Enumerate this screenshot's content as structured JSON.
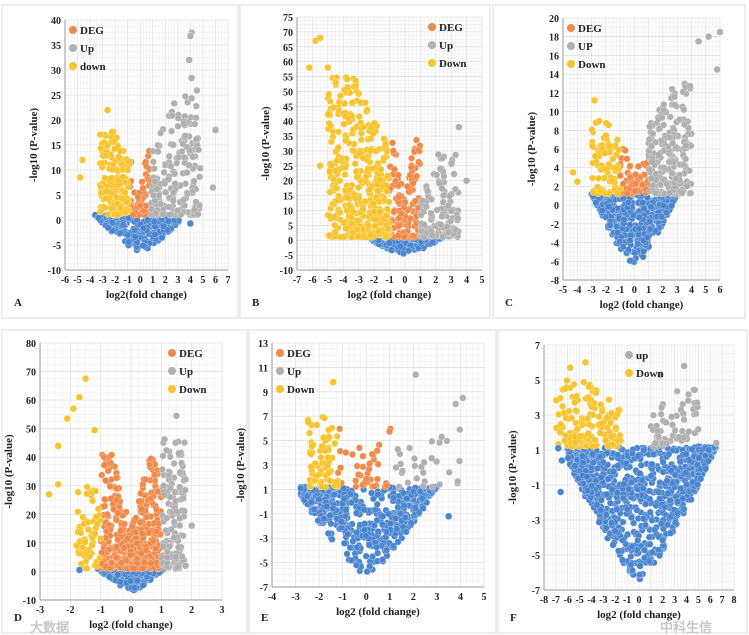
{
  "chart_data": [
    {
      "type": "scatter",
      "panel_label": "A",
      "xlabel": "log2(fold change)",
      "ylabel": "-log10 (P-value)",
      "xlim": [
        -6,
        7
      ],
      "ylim": [
        -10,
        40
      ],
      "xticks": [
        -6,
        -5,
        -4,
        -3,
        -2,
        -1,
        0,
        1,
        2,
        3,
        4,
        5,
        6,
        7
      ],
      "yticks": [
        -10,
        -5,
        0,
        5,
        10,
        15,
        20,
        25,
        30,
        35,
        40
      ],
      "legend": [
        {
          "label": "DEG",
          "color": "#f08a4b"
        },
        {
          "label": "Up",
          "color": "#b0b0b0"
        },
        {
          "label": "down",
          "color": "#f7c42c"
        }
      ],
      "legend_position": "top-left",
      "groups": [
        {
          "name": "not significant",
          "color": "#4a86cf",
          "n": 260,
          "x": [
            -3.6,
            3.1
          ],
          "y": [
            -6.5,
            1
          ],
          "shape": "bowl"
        },
        {
          "name": "DEG",
          "color": "#f08a4b",
          "n": 60,
          "x": [
            -0.9,
            0.9
          ],
          "y": [
            1,
            15
          ],
          "shape": "v"
        },
        {
          "name": "Up",
          "color": "#b0b0b0",
          "n": 180,
          "x": [
            0.9,
            4.8
          ],
          "y": [
            1,
            26
          ],
          "shape": "v"
        },
        {
          "name": "down",
          "color": "#f7c42c",
          "n": 160,
          "x": [
            -3.2,
            -0.9
          ],
          "y": [
            1,
            18
          ],
          "shape": "v"
        }
      ],
      "outliers": [
        [
          4.1,
          37.5
        ],
        [
          4,
          36.8
        ],
        [
          3.9,
          32
        ],
        [
          4.1,
          28.4
        ],
        [
          6,
          18
        ],
        [
          5.8,
          6.5
        ],
        [
          -2.6,
          22
        ],
        [
          -4.6,
          12
        ],
        [
          -4.8,
          8.5
        ],
        [
          4,
          -0.7
        ]
      ]
    },
    {
      "type": "scatter",
      "panel_label": "B",
      "xlabel": "log2 (fold change)",
      "ylabel": "-log10 (P-value)",
      "xlim": [
        -7,
        5
      ],
      "ylim": [
        -10,
        75
      ],
      "xticks": [
        -7,
        -6,
        -5,
        -4,
        -3,
        -2,
        -1,
        0,
        1,
        2,
        3,
        4,
        5
      ],
      "yticks": [
        -10,
        -5,
        0,
        5,
        10,
        15,
        20,
        25,
        30,
        35,
        40,
        45,
        50,
        55,
        60,
        65,
        70,
        75
      ],
      "legend": [
        {
          "label": "DEG",
          "color": "#f08a4b"
        },
        {
          "label": "Up",
          "color": "#b0b0b0"
        },
        {
          "label": "Down",
          "color": "#f7c42c"
        }
      ],
      "legend_position": "top-right",
      "groups": [
        {
          "name": "not significant",
          "color": "#4a86cf",
          "n": 200,
          "x": [
            -2.2,
            2.5
          ],
          "y": [
            -5,
            1
          ],
          "shape": "bowl"
        },
        {
          "name": "DEG",
          "color": "#f08a4b",
          "n": 120,
          "x": [
            -1,
            1
          ],
          "y": [
            1,
            36
          ],
          "shape": "v"
        },
        {
          "name": "Up",
          "color": "#b0b0b0",
          "n": 120,
          "x": [
            1,
            3.5
          ],
          "y": [
            1,
            30
          ],
          "shape": "v"
        },
        {
          "name": "Down",
          "color": "#f7c42c",
          "n": 400,
          "x": [
            -5,
            -1
          ],
          "y": [
            1,
            55
          ],
          "shape": "v"
        }
      ],
      "outliers": [
        [
          -5.5,
          68
        ],
        [
          -5.8,
          67
        ],
        [
          -6.2,
          58
        ],
        [
          -5,
          58
        ],
        [
          -4.5,
          53
        ],
        [
          -5.5,
          25
        ],
        [
          3.5,
          38
        ],
        [
          4,
          20
        ]
      ]
    },
    {
      "type": "scatter",
      "panel_label": "C",
      "xlabel": "log2 (fold change)",
      "ylabel": "-log10 (P-value)",
      "xlim": [
        -5,
        6
      ],
      "ylim": [
        -8,
        20
      ],
      "xticks": [
        -5,
        -4,
        -3,
        -2,
        -1,
        0,
        1,
        2,
        3,
        4,
        5,
        6
      ],
      "yticks": [
        -8,
        -6,
        -4,
        -2,
        0,
        2,
        4,
        6,
        8,
        10,
        12,
        14,
        16,
        18,
        20
      ],
      "legend": [
        {
          "label": "DEG",
          "color": "#f08a4b"
        },
        {
          "label": "UP",
          "color": "#b0b0b0"
        },
        {
          "label": "Down",
          "color": "#f7c42c"
        }
      ],
      "legend_position": "top-left",
      "groups": [
        {
          "name": "not significant",
          "color": "#4a86cf",
          "n": 420,
          "x": [
            -3,
            3
          ],
          "y": [
            -6.5,
            1.2
          ],
          "shape": "bowl"
        },
        {
          "name": "DEG",
          "color": "#f08a4b",
          "n": 60,
          "x": [
            -1,
            1
          ],
          "y": [
            1.2,
            6
          ],
          "shape": "v"
        },
        {
          "name": "UP",
          "color": "#b0b0b0",
          "n": 200,
          "x": [
            1,
            4
          ],
          "y": [
            1.2,
            13
          ],
          "shape": "v"
        },
        {
          "name": "Down",
          "color": "#f7c42c",
          "n": 80,
          "x": [
            -3,
            -1
          ],
          "y": [
            1.2,
            9
          ],
          "shape": "v"
        }
      ],
      "outliers": [
        [
          6,
          18.5
        ],
        [
          5.2,
          18
        ],
        [
          4.5,
          17.5
        ],
        [
          5.8,
          14.5
        ],
        [
          -2.8,
          11.2
        ],
        [
          -4.3,
          3.5
        ],
        [
          -4,
          2.5
        ]
      ]
    },
    {
      "type": "scatter",
      "panel_label": "D",
      "xlabel": "log2 (fold change)",
      "ylabel": "-log10 (P-value)",
      "xlim": [
        -3,
        3
      ],
      "ylim": [
        -10,
        80
      ],
      "xticks": [
        -3,
        -2,
        -1,
        0,
        1,
        2,
        3
      ],
      "yticks": [
        -10,
        0,
        10,
        20,
        30,
        40,
        50,
        60,
        70,
        80
      ],
      "legend": [
        {
          "label": "DEG",
          "color": "#f08a4b"
        },
        {
          "label": "Up",
          "color": "#b0b0b0"
        },
        {
          "label": "Down",
          "color": "#f7c42c"
        }
      ],
      "legend_position": "top-right",
      "groups": [
        {
          "name": "not significant",
          "color": "#4a86cf",
          "n": 160,
          "x": [
            -1.1,
            1.1
          ],
          "y": [
            -7,
            1
          ],
          "shape": "bowl"
        },
        {
          "name": "DEG",
          "color": "#f08a4b",
          "n": 400,
          "x": [
            -1,
            1
          ],
          "y": [
            1,
            42
          ],
          "shape": "v"
        },
        {
          "name": "Up",
          "color": "#b0b0b0",
          "n": 140,
          "x": [
            1,
            1.8
          ],
          "y": [
            1,
            48
          ],
          "shape": "v"
        },
        {
          "name": "Down",
          "color": "#f7c42c",
          "n": 60,
          "x": [
            -1.8,
            -1
          ],
          "y": [
            1,
            30
          ],
          "shape": "v"
        }
      ],
      "outliers": [
        [
          -1.5,
          67.5
        ],
        [
          -1.7,
          61
        ],
        [
          -1.9,
          57
        ],
        [
          -2.1,
          53.5
        ],
        [
          -2.4,
          44
        ],
        [
          -1.2,
          49.5
        ],
        [
          -2.7,
          27
        ],
        [
          -2.4,
          30.5
        ],
        [
          1.5,
          54.5
        ],
        [
          2,
          16
        ],
        [
          1.8,
          2
        ],
        [
          -1.7,
          0.5
        ]
      ]
    },
    {
      "type": "scatter",
      "panel_label": "E",
      "xlabel": "log2 (fold change)",
      "ylabel": "-log10 (P-value)",
      "xlim": [
        -4,
        5
      ],
      "ylim": [
        -7,
        13
      ],
      "xticks": [
        -4,
        -3,
        -2,
        -1,
        0,
        1,
        2,
        3,
        4,
        5
      ],
      "yticks": [
        -7,
        -5,
        -3,
        -1,
        1,
        3,
        5,
        7,
        9,
        11,
        13
      ],
      "legend": [
        {
          "label": "DEG",
          "color": "#f08a4b"
        },
        {
          "label": "Up",
          "color": "#b0b0b0"
        },
        {
          "label": "Down",
          "color": "#f7c42c"
        }
      ],
      "legend_position": "top-left",
      "groups": [
        {
          "name": "not significant",
          "color": "#4a86cf",
          "n": 500,
          "x": [
            -2.8,
            3
          ],
          "y": [
            -6,
            1.2
          ],
          "shape": "bowl"
        },
        {
          "name": "DEG",
          "color": "#f08a4b",
          "n": 40,
          "x": [
            -1.2,
            1.2
          ],
          "y": [
            1.2,
            7.5
          ],
          "shape": "v"
        },
        {
          "name": "Up",
          "color": "#b0b0b0",
          "n": 30,
          "x": [
            1.2,
            4
          ],
          "y": [
            1.2,
            6
          ],
          "shape": "v"
        },
        {
          "name": "Down",
          "color": "#f7c42c",
          "n": 70,
          "x": [
            -2.5,
            -1.2
          ],
          "y": [
            1.2,
            7
          ],
          "shape": "v"
        }
      ],
      "outliers": [
        [
          2.1,
          10.4
        ],
        [
          4.1,
          8.5
        ],
        [
          3.8,
          8
        ],
        [
          -1.4,
          9.8
        ],
        [
          3.5,
          -1.2
        ]
      ]
    },
    {
      "type": "scatter",
      "panel_label": "F",
      "xlabel": "log2 (fold change)",
      "ylabel": "-log10 (P-value)",
      "xlim": [
        -8,
        8
      ],
      "ylim": [
        -7,
        7
      ],
      "xticks": [
        -8,
        -7,
        -6,
        -5,
        -4,
        -3,
        -2,
        -1,
        0,
        1,
        2,
        3,
        4,
        5,
        6,
        7,
        8
      ],
      "yticks": [
        -7,
        -5,
        -3,
        -1,
        1,
        3,
        5,
        7
      ],
      "legend": [
        {
          "label": "up",
          "color": "#b0b0b0"
        },
        {
          "label": "Down",
          "color": "#f7c42c"
        }
      ],
      "legend_position": "top-center",
      "groups": [
        {
          "name": "not significant",
          "color": "#4a86cf",
          "n": 900,
          "x": [
            -6,
            6.5
          ],
          "y": [
            -6.4,
            1.2
          ],
          "shape": "bowl"
        },
        {
          "name": "up",
          "color": "#b0b0b0",
          "n": 60,
          "x": [
            1,
            5
          ],
          "y": [
            1.2,
            4.5
          ],
          "shape": "v"
        },
        {
          "name": "Down",
          "color": "#f7c42c",
          "n": 140,
          "x": [
            -7,
            -1.5
          ],
          "y": [
            1.2,
            5
          ],
          "shape": "v"
        }
      ],
      "outliers": [
        [
          -4.5,
          6
        ],
        [
          -5.8,
          5.7
        ],
        [
          3.8,
          5.8
        ],
        [
          1.8,
          5.3
        ],
        [
          6.5,
          1.4
        ],
        [
          -6.8,
          1.1
        ],
        [
          -6.5,
          0.4
        ],
        [
          -6.6,
          -1.4
        ]
      ]
    }
  ],
  "watermark": [
    "大数据",
    "中科生信"
  ]
}
